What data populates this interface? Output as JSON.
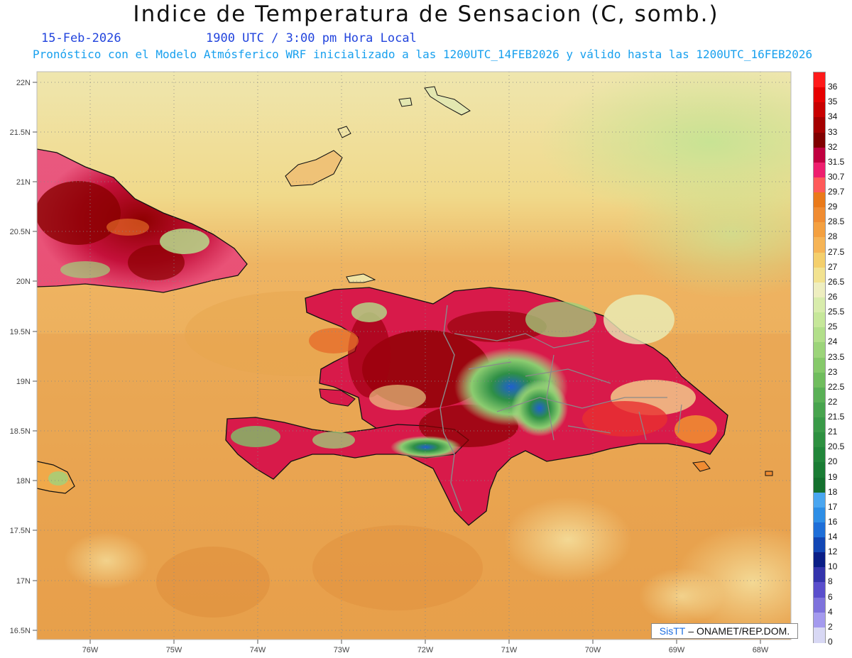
{
  "title": "Indice de Temperatura de Sensacion (C, somb.)",
  "date": "15-Feb-2026",
  "time": "1900 UTC / 3:00 pm Hora Local",
  "subtitle": "Pronóstico con el Modelo Atmósferico WRF inicializado a las 1200UTC_14FEB2026 y válido hasta las  1200UTC_16FEB2026",
  "credit": {
    "logo_text": "SisTT",
    "text": "– ONAMET/REP.DOM."
  },
  "lat_labels": [
    "22N",
    "21.5N",
    "21N",
    "20.5N",
    "20N",
    "19.5N",
    "19N",
    "18.5N",
    "18N",
    "17.5N",
    "17N",
    "16.5N"
  ],
  "lon_labels": [
    "76W",
    "75W",
    "74W",
    "73W",
    "72W",
    "71W",
    "70W",
    "69W",
    "68W"
  ],
  "legend": {
    "labels": [
      "36",
      "35",
      "34",
      "33",
      "32",
      "31.5",
      "30.7",
      "29.7",
      "29",
      "28.5",
      "28",
      "27.5",
      "27",
      "26.5",
      "26",
      "25.5",
      "25",
      "24",
      "23.5",
      "23",
      "22.5",
      "22",
      "21.5",
      "21",
      "20.5",
      "20",
      "19",
      "18",
      "17",
      "16",
      "14",
      "12",
      "10",
      "8",
      "6",
      "4",
      "2",
      "0"
    ],
    "colors": [
      "#ff1a1a",
      "#e60000",
      "#c80000",
      "#a40000",
      "#800000",
      "#c00040",
      "#ee1e6e",
      "#ff5a5a",
      "#ea7a1a",
      "#f08c32",
      "#f4a040",
      "#f6b456",
      "#f4cf6c",
      "#f2e290",
      "#eeeec0",
      "#d8ecac",
      "#c6e79a",
      "#b2df8a",
      "#9cd47a",
      "#86c96a",
      "#70bd5e",
      "#5ab056",
      "#48a44e",
      "#3a9a48",
      "#2e9040",
      "#22863a",
      "#1a7c34",
      "#14702e",
      "#4aa6f0",
      "#2e8ee6",
      "#1e6ed8",
      "#1246b4",
      "#0a1e86",
      "#3434ac",
      "#5a4ecc",
      "#7e72dc",
      "#a49aee",
      "#d8d8f4"
    ]
  },
  "colors": {
    "ocean_base": "#eca64e",
    "ocean_north": "#efe3a4",
    "ocean_ne": "#cfe59a",
    "coast": "#111111",
    "border": "#8a8a8a"
  }
}
